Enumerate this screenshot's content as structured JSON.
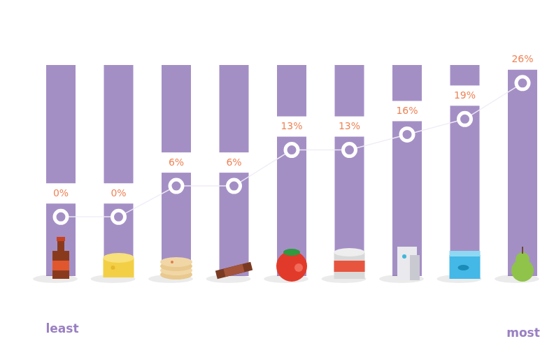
{
  "chart_data": {
    "type": "line",
    "categories": [
      null,
      null,
      null,
      null,
      null,
      null,
      null,
      null,
      null
    ],
    "values": [
      0,
      0,
      6,
      6,
      13,
      13,
      16,
      19,
      26
    ],
    "value_labels": [
      "0%",
      "0%",
      "6%",
      "6%",
      "13%",
      "13%",
      "16%",
      "19%",
      "26%"
    ],
    "data_labels": true,
    "color": "#a48fc5",
    "marker": "circle",
    "line_style": "solid",
    "ylim": [
      -11.5,
      29.5
    ],
    "grid": false,
    "tick_labels": false,
    "annotations": [
      "least",
      "most"
    ]
  }
}
